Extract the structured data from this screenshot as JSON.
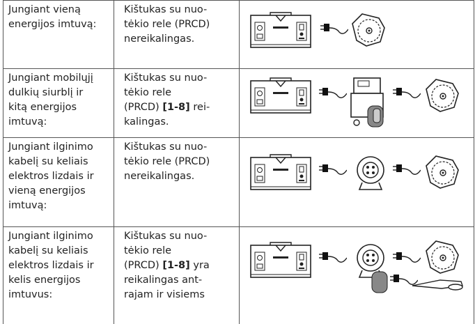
{
  "table": {
    "rows": [
      {
        "situation": [
          "Jungiant vieną",
          "energijos imtuvą:"
        ],
        "requirement": [
          "Kištukas su nuo-",
          "tėkio rele (PRCD)",
          "nereikalingas."
        ]
      },
      {
        "situation": [
          "Jungiant mobilųjį",
          "dulkių siurblį ir",
          "kitą energijos",
          "imtuvą:"
        ],
        "requirement": [
          "Kištukas su nuo-",
          "tėkio rele",
          [
            "(PRCD) ",
            "[1-8]",
            " rei-"
          ],
          "kalingas."
        ]
      },
      {
        "situation": [
          "Jungiant ilginimo",
          "kabelį su keliais",
          "elektros lizdais ir",
          "vieną energijos",
          "imtuvą:"
        ],
        "requirement": [
          "Kištukas su nuo-",
          "tėkio rele (PRCD)",
          "nereikalingas."
        ]
      },
      {
        "situation": [
          "Jungiant ilginimo",
          "kabelį su keliais",
          "elektros lizdais ir",
          "kelis energijos",
          "imtuvus:"
        ],
        "requirement": [
          "Kištukas su nuo-",
          "tėkio rele",
          [
            "(PRCD) ",
            "[1-8]",
            " yra"
          ],
          "reikalingas ant-",
          "rajam ir visiems"
        ]
      }
    ]
  }
}
